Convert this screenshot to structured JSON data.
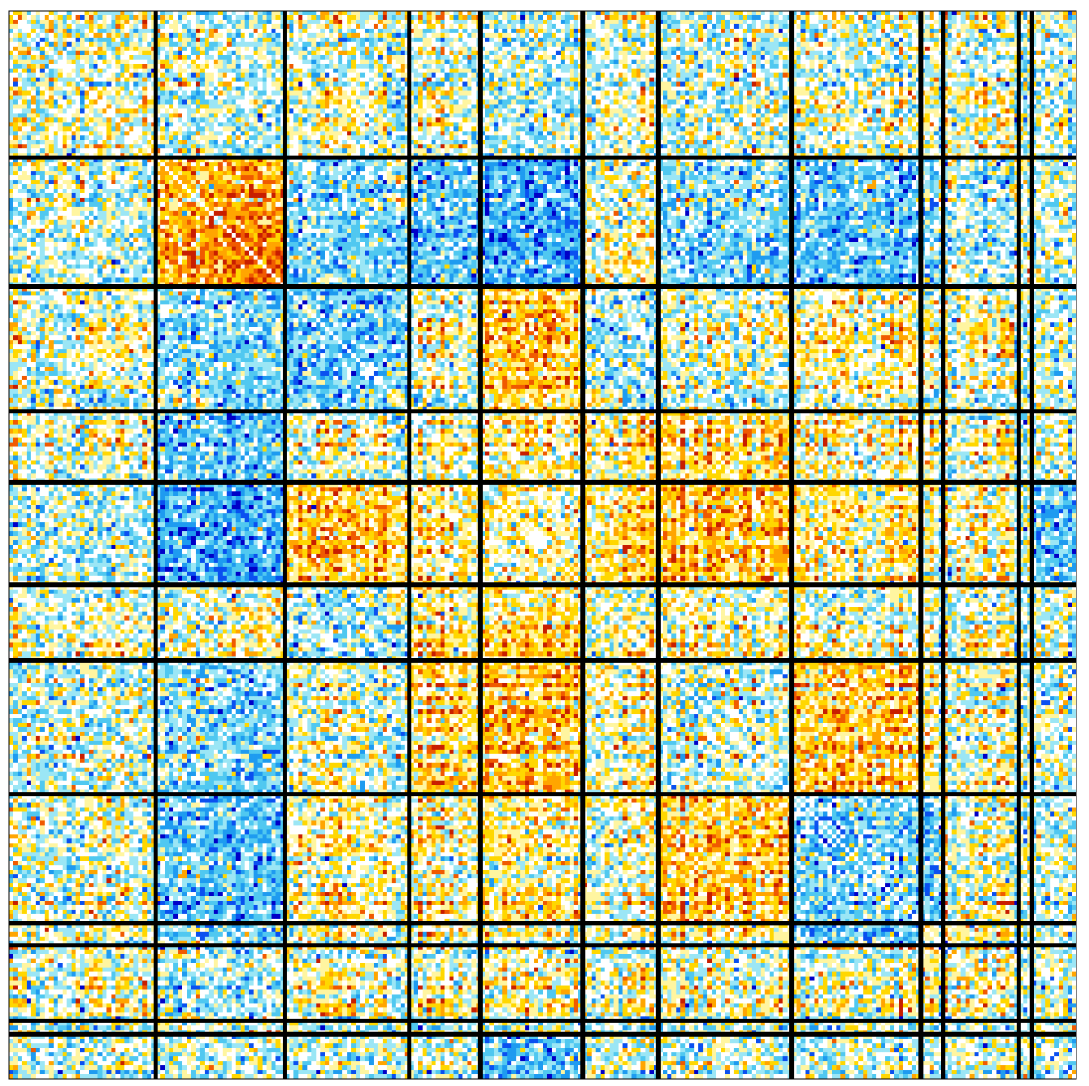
{
  "chart_data": {
    "type": "heatmap",
    "title": "",
    "xlabel": "",
    "ylabel": "",
    "value_range": [
      -1,
      1
    ],
    "matrix_size": 240,
    "colormap": [
      "#0000c8",
      "#0a50f0",
      "#1e9bf0",
      "#50c8f0",
      "#9be6f5",
      "#ffffff",
      "#fff5a0",
      "#ffd700",
      "#ffa500",
      "#f05a00",
      "#c81e00"
    ],
    "block_sizes": [
      33,
      29,
      28,
      16,
      23,
      17,
      30,
      29,
      5,
      17,
      3,
      10
    ],
    "block_mean_values": [
      [
        0.05,
        -0.05,
        0.0,
        0.0,
        -0.05,
        0.0,
        -0.05,
        0.0,
        0.0,
        0.0,
        0.0,
        0.0
      ],
      [
        -0.05,
        0.55,
        -0.25,
        -0.35,
        -0.45,
        0.05,
        -0.25,
        -0.35,
        -0.2,
        -0.1,
        0.0,
        0.0
      ],
      [
        0.0,
        -0.25,
        -0.3,
        0.0,
        0.35,
        -0.1,
        0.0,
        0.1,
        0.0,
        0.0,
        0.0,
        0.0
      ],
      [
        0.0,
        -0.35,
        0.0,
        0.0,
        0.1,
        0.15,
        0.3,
        0.1,
        0.0,
        0.0,
        0.0,
        0.0
      ],
      [
        -0.05,
        -0.45,
        0.35,
        0.1,
        0.05,
        0.3,
        0.4,
        0.15,
        0.05,
        0.05,
        0.0,
        -0.35
      ],
      [
        0.0,
        0.05,
        -0.1,
        0.15,
        0.3,
        0.05,
        0.1,
        0.05,
        0.0,
        0.0,
        0.0,
        0.0
      ],
      [
        -0.05,
        -0.25,
        0.0,
        0.3,
        0.4,
        0.1,
        -0.05,
        0.4,
        0.1,
        0.05,
        0.0,
        0.0
      ],
      [
        0.0,
        -0.35,
        0.1,
        0.1,
        0.15,
        0.05,
        0.4,
        -0.25,
        -0.3,
        0.0,
        0.0,
        0.0
      ],
      [
        0.0,
        -0.2,
        0.0,
        0.0,
        0.05,
        0.0,
        0.1,
        -0.3,
        0.1,
        0.0,
        0.0,
        0.0
      ],
      [
        0.0,
        -0.1,
        0.0,
        0.0,
        0.05,
        0.0,
        0.05,
        0.0,
        0.0,
        0.05,
        0.0,
        0.0
      ],
      [
        0.0,
        0.0,
        0.0,
        0.0,
        0.0,
        0.0,
        0.0,
        0.0,
        0.0,
        0.0,
        0.0,
        0.0
      ],
      [
        0.0,
        0.0,
        0.0,
        0.0,
        -0.35,
        0.0,
        0.0,
        0.0,
        0.0,
        0.0,
        0.0,
        0.0
      ]
    ],
    "block_separators": "black",
    "grid": false,
    "legend": "none"
  }
}
